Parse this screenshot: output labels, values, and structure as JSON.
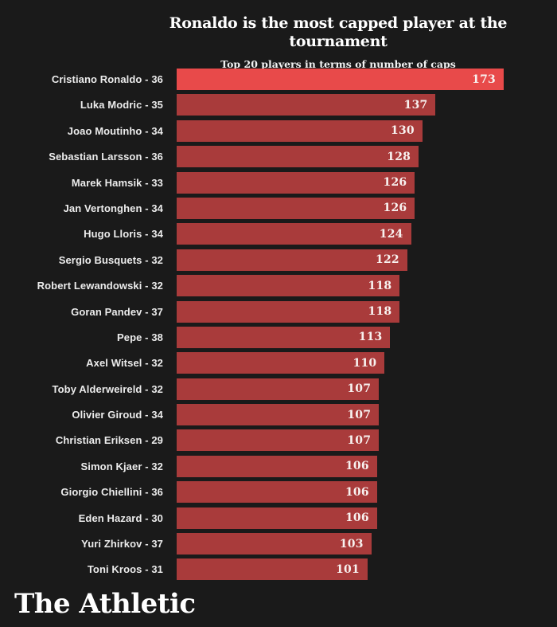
{
  "header": {
    "title": "Ronaldo is the most capped player at the tournament",
    "subtitle": "Top 20 players in terms of number of caps"
  },
  "footer": {
    "logo_text": "The Athletic"
  },
  "colors": {
    "background": "#1a1a1a",
    "bar": "#a93b3b",
    "highlight_bar": "#e84a4a",
    "label_text": "#ececec",
    "value_text": "#f8f2f0",
    "title_text": "#ffffff"
  },
  "chart_data": {
    "type": "bar",
    "orientation": "horizontal",
    "title": "Ronaldo is the most capped player at the tournament",
    "subtitle": "Top 20 players in terms of number of caps",
    "xlabel": "",
    "ylabel": "",
    "xlim": [
      0,
      173
    ],
    "grid": false,
    "legend": false,
    "value_labels": "inside-end",
    "highlight_index": 0,
    "categories": [
      "Cristiano Ronaldo - 36",
      "Luka Modric - 35",
      "Joao Moutinho - 34",
      "Sebastian Larsson - 36",
      "Marek Hamsik - 33",
      "Jan Vertonghen - 34",
      "Hugo Lloris - 34",
      "Sergio Busquets - 32",
      "Robert Lewandowski - 32",
      "Goran Pandev - 37",
      "Pepe - 38",
      "Axel Witsel - 32",
      "Toby Alderweireld - 32",
      "Olivier Giroud - 34",
      "Christian Eriksen - 29",
      "Simon Kjaer - 32",
      "Giorgio Chiellini - 36",
      "Eden Hazard - 30",
      "Yuri Zhirkov - 37",
      "Toni Kroos - 31"
    ],
    "values": [
      173,
      137,
      130,
      128,
      126,
      126,
      124,
      122,
      118,
      118,
      113,
      110,
      107,
      107,
      107,
      106,
      106,
      106,
      103,
      101
    ]
  }
}
